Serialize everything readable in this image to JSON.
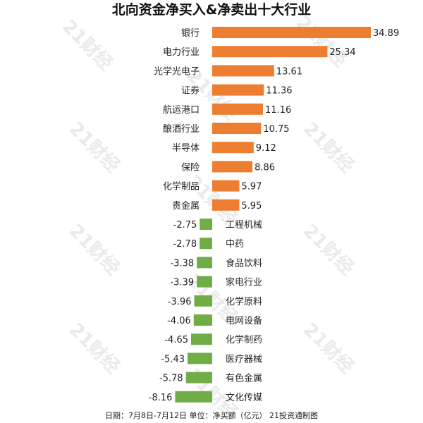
{
  "chart_data": {
    "type": "bar",
    "orientation": "horizontal",
    "title": "北向资金净买入&净卖出十大行业",
    "footer": "日期：7月8日-7月12日 单位：净买额（亿元） 21投资通制图",
    "watermark": "21财经",
    "xlabel": "",
    "ylabel": "",
    "grid": false,
    "legend": "none",
    "colors": {
      "positive": "#ed7d31",
      "negative": "#70ad47"
    },
    "categories": [
      "银行",
      "电力行业",
      "光学光电子",
      "证券",
      "航运港口",
      "酿酒行业",
      "半导体",
      "保险",
      "化学制品",
      "贵金属",
      "工程机械",
      "中药",
      "食品饮料",
      "家电行业",
      "化学原料",
      "电网设备",
      "化学制药",
      "医疗器械",
      "有色金属",
      "文化传媒"
    ],
    "values": [
      34.89,
      25.34,
      13.61,
      11.36,
      11.16,
      10.75,
      9.12,
      8.86,
      5.97,
      5.95,
      -2.75,
      -2.78,
      -3.38,
      -3.39,
      -3.96,
      -4.06,
      -4.65,
      -5.43,
      -5.78,
      -8.16
    ],
    "value_labels": [
      "34.89",
      "25.34",
      "13.61",
      "11.36",
      "11.16",
      "10.75",
      "9.12",
      "8.86",
      "5.97",
      "5.95",
      "-2.75",
      "-2.78",
      "-3.38",
      "-3.39",
      "-3.96",
      "-4.06",
      "-4.65",
      "-5.43",
      "-5.78",
      "-8.16"
    ]
  }
}
